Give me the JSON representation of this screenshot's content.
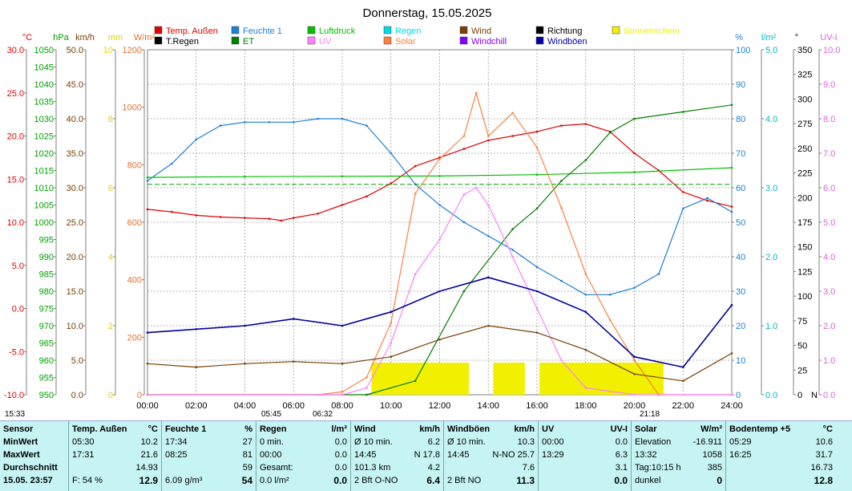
{
  "title": "Donnerstag, 15.05.2025",
  "legend": [
    {
      "label": "Temp. Außen",
      "color": "#e00000"
    },
    {
      "label": "Feuchte 1",
      "color": "#1e7fd8"
    },
    {
      "label": "Luftdruck",
      "color": "#00c000"
    },
    {
      "label": "Regen",
      "color": "#00d8e8"
    },
    {
      "label": "Wind",
      "color": "#7a3e00"
    },
    {
      "label": "Richtung",
      "color": "#000000"
    },
    {
      "label": "Sonnenschein",
      "color": "#f0f000"
    },
    {
      "label": "T.Regen",
      "color": "#000000"
    },
    {
      "label": "ET",
      "color": "#008000"
    },
    {
      "label": "UV",
      "color": "#ff80ff"
    },
    {
      "label": "Solar",
      "color": "#ff8040"
    },
    {
      "label": "Windchill",
      "color": "#8000ff"
    },
    {
      "label": "Windböen",
      "color": "#0000a0"
    }
  ],
  "chart_data": {
    "type": "line",
    "title": "Donnerstag, 15.05.2025",
    "x_labels": [
      "00:00",
      "02:00",
      "04:00",
      "06:00",
      "08:00",
      "10:00",
      "12:00",
      "14:00",
      "16:00",
      "18:00",
      "20:00",
      "22:00",
      "24:00"
    ],
    "axes": [
      {
        "unit": "°C",
        "color": "#e00000",
        "ticks": [
          "30.0",
          "25.0",
          "20.0",
          "15.0",
          "10.0",
          "5.0",
          "0.0",
          "-5.0",
          "-10.0"
        ]
      },
      {
        "unit": "hPa",
        "color": "#00a000",
        "ticks": [
          "1050",
          "1045",
          "1040",
          "1035",
          "1030",
          "1025",
          "1020",
          "1015",
          "1010",
          "1005",
          "1000",
          "995",
          "990",
          "985",
          "980",
          "975",
          "970",
          "965",
          "960",
          "955",
          "950"
        ]
      },
      {
        "unit": "km/h",
        "color": "#7a3e00",
        "ticks": [
          "50.0",
          "45.0",
          "40.0",
          "35.0",
          "30.0",
          "25.0",
          "20.0",
          "15.0",
          "10.0",
          "5.0",
          "0.0"
        ]
      },
      {
        "unit": "mm",
        "color": "#e8d000",
        "ticks": [
          "10",
          "8",
          "6",
          "4",
          "2",
          "0"
        ]
      },
      {
        "unit": "W/m²",
        "color": "#e07030",
        "ticks": [
          "1200",
          "1000",
          "800",
          "600",
          "400",
          "200",
          "0"
        ]
      },
      {
        "unit": "%",
        "color": "#1e7fd8",
        "ticks": [
          "100",
          "90",
          "80",
          "70",
          "60",
          "50",
          "40",
          "30",
          "20",
          "10",
          "0"
        ]
      },
      {
        "unit": "l/m²",
        "color": "#00b8c8",
        "ticks": [
          "5.0",
          "4.0",
          "3.0",
          "2.0",
          "1.0",
          "0.0"
        ]
      },
      {
        "unit": "°",
        "color": "#000000",
        "ticks": [
          "350",
          "325",
          "300",
          "275",
          "250",
          "225",
          "200",
          "175",
          "150",
          "125",
          "100",
          "75",
          "50",
          "25",
          "0"
        ],
        "bottom_label": "N"
      },
      {
        "unit": "UV-I",
        "color": "#e060e0",
        "ticks": [
          "10.0",
          "9.0",
          "8.0",
          "7.0",
          "6.0",
          "5.0",
          "4.0",
          "3.0",
          "2.0",
          "1.0",
          "0.0"
        ]
      }
    ],
    "series": [
      {
        "name": "Temp. Außen",
        "unit": "°C",
        "x": [
          0,
          1,
          2,
          3,
          4,
          5,
          5.5,
          6,
          7,
          8,
          9,
          10,
          11,
          12,
          13,
          14,
          15,
          16,
          17,
          18,
          19,
          20,
          21,
          22,
          23,
          24
        ],
        "values": [
          11.5,
          11.2,
          10.8,
          10.6,
          10.5,
          10.4,
          10.2,
          10.5,
          11.0,
          12.0,
          13.0,
          14.5,
          16.5,
          17.5,
          18.5,
          19.5,
          20.0,
          20.5,
          21.2,
          21.4,
          20.5,
          18.0,
          16.0,
          13.5,
          12.5,
          11.8
        ]
      },
      {
        "name": "Feuchte 1",
        "unit": "%",
        "x": [
          0,
          1,
          2,
          3,
          4,
          5,
          6,
          7,
          8,
          9,
          10,
          11,
          12,
          13,
          14,
          15,
          16,
          17,
          18,
          19,
          20,
          21,
          22,
          23,
          24
        ],
        "values": [
          62,
          67,
          74,
          78,
          79,
          79,
          79,
          80,
          80,
          78,
          70,
          61,
          55,
          50,
          46,
          42,
          37,
          33,
          29,
          29,
          31,
          35,
          54,
          57,
          53
        ]
      },
      {
        "name": "Luftdruck",
        "unit": "hPa",
        "x": [
          0,
          4,
          8,
          12,
          16,
          20,
          24
        ],
        "values": [
          1013.0,
          1013.2,
          1013.3,
          1013.4,
          1013.8,
          1014.5,
          1015.8
        ]
      },
      {
        "name": "ET",
        "unit": "l/m²",
        "x": [
          0,
          9,
          11,
          13,
          15,
          16,
          17,
          18,
          19,
          20,
          22,
          24
        ],
        "values": [
          0.0,
          0.0,
          0.2,
          1.5,
          2.4,
          2.7,
          3.1,
          3.4,
          3.8,
          4.0,
          4.1,
          4.2
        ]
      },
      {
        "name": "Solar",
        "unit": "W/m²",
        "x": [
          0,
          7,
          8,
          9,
          10,
          11,
          12,
          13,
          13.5,
          14,
          15,
          16,
          17,
          18,
          19,
          20,
          21,
          24
        ],
        "values": [
          0,
          0,
          10,
          60,
          250,
          700,
          820,
          900,
          1050,
          900,
          980,
          860,
          650,
          420,
          260,
          120,
          0,
          0
        ]
      },
      {
        "name": "UV",
        "unit": "UV-I",
        "x": [
          0,
          8,
          9,
          10,
          11,
          12,
          13,
          13.5,
          14,
          15,
          16,
          17,
          18,
          20,
          24
        ],
        "values": [
          0,
          0,
          0.2,
          1.5,
          3.5,
          4.5,
          5.8,
          6.0,
          5.5,
          4.0,
          2.5,
          1.0,
          0.2,
          0,
          0
        ]
      },
      {
        "name": "Wind",
        "unit": "km/h",
        "x": [
          0,
          2,
          4,
          6,
          8,
          10,
          12,
          14,
          16,
          18,
          20,
          22,
          24
        ],
        "values": [
          4.5,
          4.0,
          4.5,
          4.8,
          4.5,
          5.5,
          8.0,
          10.0,
          9.0,
          6.5,
          3.0,
          2.0,
          6.0
        ]
      },
      {
        "name": "Windböen",
        "unit": "km/h",
        "x": [
          0,
          2,
          4,
          6,
          8,
          10,
          12,
          14,
          16,
          18,
          20,
          22,
          24
        ],
        "values": [
          9.0,
          9.5,
          10.0,
          11.0,
          10.0,
          12.0,
          15.0,
          17.0,
          15.0,
          12.0,
          5.5,
          4.0,
          13.0
        ]
      },
      {
        "name": "Sonnenschein",
        "unit": "h",
        "x": [
          9.2,
          13.2,
          14.2,
          15.5,
          16.1,
          21.2
        ],
        "values": [
          1,
          1,
          1,
          1,
          1,
          1
        ]
      }
    ],
    "xlabel": "",
    "ylabel": ""
  },
  "ticks_bottom": {
    "sunrise_hm": "05:45",
    "sunrise_marker": "06:32",
    "sunset_hm": "21:18",
    "left_time": "15:33"
  },
  "stats": {
    "sensor": {
      "title": "Sensor",
      "rows": [
        "MinWert",
        "MaxWert",
        "Durchschnitt",
        "15.05. 23:57"
      ]
    },
    "temp": {
      "title": "Temp. Außen",
      "unit": "°C",
      "min_time": "05:30",
      "min_val": "10.2",
      "max_time": "17:31",
      "max_val": "21.6",
      "avg": "14.93",
      "last_label": "F: 54 %",
      "last": "12.9"
    },
    "hum": {
      "title": "Feuchte 1",
      "unit": "%",
      "min_time": "17:34",
      "min_val": "27",
      "max_time": "08:25",
      "max_val": "81",
      "avg": "59",
      "last_label": "6.09 g/m³",
      "last": "54"
    },
    "rain": {
      "title": "Regen",
      "unit": "l/m²",
      "r1_label": "0 min.",
      "r1_val": "0.0",
      "r2_label": "00:00",
      "r2_val": "0.0",
      "r3_label": "Gesamt:",
      "r3_val": "0.0",
      "r4_label": "0.0 l/m²",
      "last": "0.0"
    },
    "wind": {
      "title": "Wind",
      "unit": "km/h",
      "r1_label": "Ø 10 min.",
      "r1_val": "6.2",
      "r2_label": "14:45",
      "r2_mid": "N",
      "r2_val": "17.8",
      "r3_label": "101.3 km",
      "r3_val": "4.2",
      "r4_label": "2 Bft O-NO",
      "last": "6.4"
    },
    "gust": {
      "title": "Windböen",
      "unit": "km/h",
      "r1_label": "Ø 10 min.",
      "r1_val": "10.3",
      "r2_label": "14:45",
      "r2_mid": "N-NO",
      "r2_val": "25.7",
      "r3_val": "7.6",
      "r4_label": "2 Bft NO",
      "last": "11.3"
    },
    "uv": {
      "title": "UV",
      "unit": "UV-I",
      "r1_label": "00:00",
      "r1_val": "0.0",
      "r2_label": "13:29",
      "r2_val": "6.3",
      "r3_val": "3.1",
      "last": "0.0"
    },
    "solar": {
      "title": "Solar",
      "unit": "W/m²",
      "r1_label": "Elevation",
      "r1_val": "-16.911",
      "r2_label": "13:32",
      "r2_val": "1058",
      "r3_label": "Tag:10:15 h",
      "r3_val": "385",
      "r4_label": "dunkel",
      "last": "0"
    },
    "soil": {
      "title": "Bodentemp +5",
      "unit": "°C",
      "min_time": "05:29",
      "min_val": "10.6",
      "max_time": "16:25",
      "max_val": "31.7",
      "avg": "16.73",
      "last": "12.8"
    }
  }
}
